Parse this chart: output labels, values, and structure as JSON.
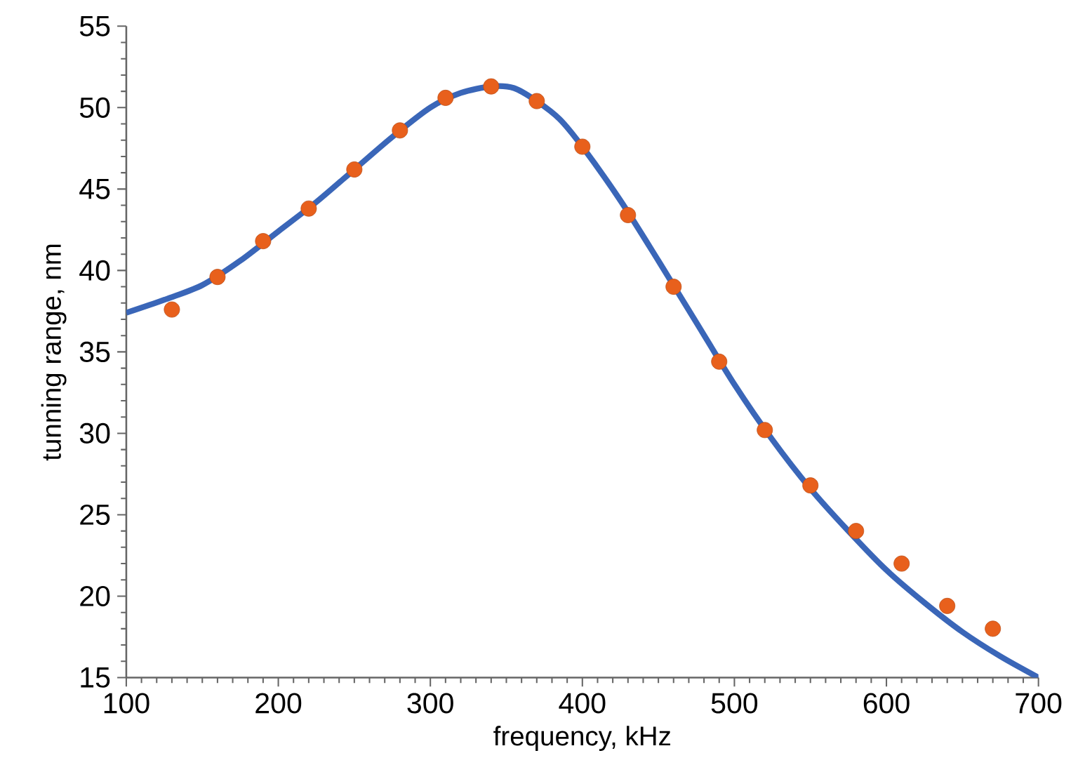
{
  "chart_data": {
    "type": "scatter",
    "xlabel": "frequency, kHz",
    "ylabel": "tunning range, nm",
    "xlim": [
      100,
      700
    ],
    "ylim": [
      15,
      55
    ],
    "xticks": [
      100,
      200,
      300,
      400,
      500,
      600,
      700
    ],
    "yticks": [
      15,
      20,
      25,
      30,
      35,
      40,
      45,
      50,
      55
    ],
    "grid": false,
    "series": [
      {
        "type": "line",
        "color": "#3a66b8",
        "marker": "none",
        "x": [
          100,
          125,
          150,
          175,
          200,
          225,
          250,
          275,
          300,
          320,
          340,
          355,
          370,
          385,
          400,
          425,
          450,
          475,
          500,
          525,
          550,
          575,
          600,
          625,
          650,
          675,
          700
        ],
        "values": [
          37.4,
          38.2,
          39.1,
          40.6,
          42.4,
          44.2,
          46.2,
          48.2,
          50.0,
          50.9,
          51.3,
          51.2,
          50.4,
          49.3,
          47.6,
          44.3,
          40.6,
          36.8,
          33.0,
          29.6,
          26.6,
          24.0,
          21.6,
          19.6,
          17.8,
          16.3,
          15.0
        ]
      },
      {
        "color": "#e8601c",
        "marker": "circle",
        "x": [
          130,
          160,
          190,
          220,
          250,
          280,
          310,
          340,
          370,
          400,
          430,
          460,
          490,
          520,
          550,
          580,
          610,
          640,
          670
        ],
        "values": [
          37.6,
          39.6,
          41.8,
          43.8,
          46.2,
          48.6,
          50.6,
          51.3,
          50.4,
          47.6,
          43.4,
          39.0,
          34.4,
          30.2,
          26.8,
          24.0,
          22.0,
          19.4,
          18.0
        ]
      }
    ]
  }
}
